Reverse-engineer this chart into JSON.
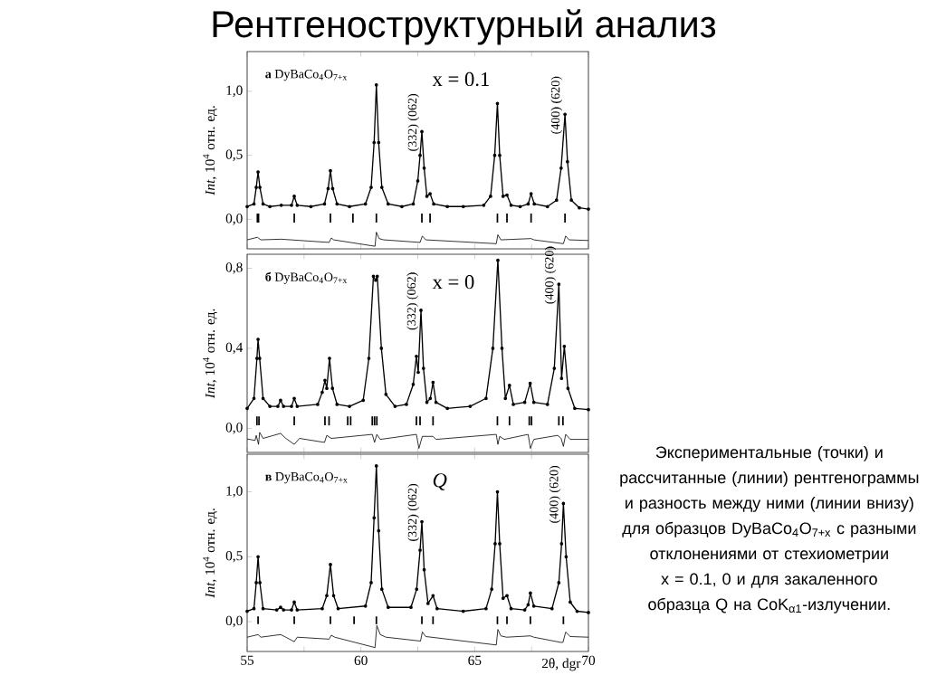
{
  "chart_data": [
    {
      "type": "line",
      "title": "Рентгеноструктурный анализ",
      "ylabel": "*Int*, 10$^{4}$ отн. ед.",
      "xlim": [
        55,
        70
      ],
      "ylim": [
        -0.23,
        1.31
      ],
      "tick_labels": "y",
      "xticks": [
        55,
        {
          "value": 57.5,
          "label": null
        },
        60,
        {
          "value": 62.5,
          "label": null
        },
        65,
        {
          "value": 67.5,
          "label": null
        },
        70
      ],
      "yticks": [
        {
          "value": 0,
          "label": "0,0"
        },
        {
          "value": 0.5,
          "label": "0,5"
        },
        {
          "value": 1.0,
          "label": "1,0"
        }
      ],
      "annotations": [
        "**а** DyBaCo$_{4}$O$_{7+x}$",
        "x = 0.1",
        {
          "text": "(332) (062)",
          "x": 62.68,
          "y": 0.685
        },
        {
          "text": "(400) (620)",
          "x": 68.97,
          "y": 0.82
        }
      ],
      "series": [
        {
          "marker": "circle",
          "color": "#000000",
          "x": [
            55.0,
            55.3,
            55.4,
            55.48,
            55.56,
            55.7,
            56.0,
            56.5,
            56.95,
            57.07,
            57.2,
            57.8,
            58.4,
            58.56,
            58.66,
            58.76,
            58.95,
            59.5,
            60.2,
            60.45,
            60.58,
            60.68,
            60.78,
            60.92,
            61.2,
            61.8,
            62.3,
            62.5,
            62.6,
            62.68,
            62.78,
            62.9,
            63.04,
            63.2,
            63.8,
            64.5,
            65.4,
            65.7,
            65.88,
            66.0,
            66.1,
            66.25,
            66.42,
            66.6,
            67.0,
            67.35,
            67.48,
            67.62,
            68.2,
            68.6,
            68.8,
            68.97,
            69.08,
            69.25,
            69.6,
            70.0
          ],
          "values": [
            0.1,
            0.12,
            0.25,
            0.37,
            0.25,
            0.12,
            0.1,
            0.11,
            0.11,
            0.18,
            0.11,
            0.1,
            0.12,
            0.24,
            0.38,
            0.24,
            0.12,
            0.1,
            0.12,
            0.25,
            0.6,
            1.05,
            0.6,
            0.25,
            0.12,
            0.1,
            0.12,
            0.3,
            0.5,
            0.685,
            0.4,
            0.18,
            0.2,
            0.12,
            0.1,
            0.1,
            0.11,
            0.18,
            0.5,
            0.905,
            0.5,
            0.18,
            0.19,
            0.11,
            0.1,
            0.12,
            0.2,
            0.12,
            0.1,
            0.15,
            0.4,
            0.82,
            0.45,
            0.15,
            0.09,
            0.08
          ]
        },
        {
          "type": "bar",
          "color": "#000000",
          "x": [
            55.45,
            55.5,
            57.07,
            58.66,
            59.65,
            60.68,
            62.68,
            63.04,
            66.0,
            66.42,
            67.48,
            68.97
          ],
          "base": [
            -0.025,
            -0.025,
            -0.025,
            -0.025,
            -0.025,
            -0.025,
            -0.025,
            -0.025,
            -0.025,
            -0.025,
            -0.025,
            -0.025
          ],
          "values": [
            0.07,
            0.07,
            0.07,
            0.07,
            0.07,
            0.07,
            0.07,
            0.07,
            0.07,
            0.07,
            0.07,
            0.07
          ]
        },
        {
          "marker": "none",
          "color": "#000000",
          "x": [
            55.0,
            55.45,
            55.6,
            56.5,
            58.6,
            58.7,
            58.8,
            60.62,
            60.68,
            60.8,
            61.0,
            62.6,
            62.7,
            62.85,
            65.95,
            66.02,
            66.15,
            67.48,
            67.6,
            68.9,
            69.0,
            69.15,
            70.0
          ],
          "values": [
            -0.16,
            -0.14,
            -0.16,
            -0.155,
            -0.18,
            -0.145,
            -0.16,
            -0.21,
            -0.1,
            -0.15,
            -0.16,
            -0.18,
            -0.13,
            -0.16,
            -0.19,
            -0.12,
            -0.16,
            -0.15,
            -0.16,
            -0.19,
            -0.13,
            -0.16,
            -0.165
          ]
        }
      ]
    },
    {
      "type": "line",
      "ylabel": "*Int*, 10$^{4}$ отн. ед.",
      "xlim": [
        55,
        70
      ],
      "ylim": [
        -0.12,
        0.87
      ],
      "tick_labels": "y",
      "xticks": [
        55,
        {
          "value": 57.5,
          "label": null
        },
        60,
        {
          "value": 62.5,
          "label": null
        },
        65,
        {
          "value": 67.5,
          "label": null
        },
        70
      ],
      "yticks": [
        {
          "value": 0,
          "label": "0,0"
        },
        {
          "value": 0.4,
          "label": "0,4"
        },
        {
          "value": 0.8,
          "label": "0,8"
        }
      ],
      "annotations": [
        "**б** DyBaCo$_{4}$O$_{7+x}$",
        "x = 0",
        "Экспериментальные (точки) и рассчитанные (линии) рентгенограммы и разность между ними (линии внизу) для образцов DyBaCo$_{4}$O$_{7+x}$ с разными отклонениями от стехиометрии x = 0.1, 0 и для закаленного образца Q на CoK$_{α1}$-излучении.",
        {
          "text": "(332) (062)",
          "x": 62.64,
          "y": 0.59
        },
        {
          "text": "(400) (620)",
          "x": 68.7,
          "y": 0.72
        }
      ],
      "series": [
        {
          "marker": "circle",
          "color": "#000000",
          "x": [
            55.0,
            55.3,
            55.43,
            55.48,
            55.55,
            55.7,
            56.0,
            56.35,
            56.47,
            56.6,
            56.95,
            57.07,
            57.2,
            58.1,
            58.3,
            58.42,
            58.5,
            58.62,
            58.75,
            58.95,
            59.5,
            60.1,
            60.35,
            60.55,
            60.65,
            60.72,
            60.9,
            61.1,
            61.5,
            62.0,
            62.3,
            62.44,
            62.52,
            62.64,
            62.75,
            62.9,
            63.05,
            63.17,
            63.3,
            63.8,
            64.8,
            65.5,
            65.8,
            66.02,
            66.2,
            66.35,
            66.53,
            66.7,
            67.2,
            67.44,
            67.6,
            68.2,
            68.5,
            68.7,
            68.82,
            68.94,
            69.1,
            69.4,
            70.0
          ],
          "values": [
            0.1,
            0.15,
            0.35,
            0.445,
            0.35,
            0.15,
            0.11,
            0.11,
            0.14,
            0.11,
            0.11,
            0.15,
            0.11,
            0.12,
            0.18,
            0.24,
            0.2,
            0.35,
            0.2,
            0.12,
            0.11,
            0.14,
            0.35,
            0.76,
            0.74,
            0.76,
            0.4,
            0.17,
            0.11,
            0.12,
            0.22,
            0.36,
            0.28,
            0.59,
            0.3,
            0.13,
            0.15,
            0.23,
            0.13,
            0.1,
            0.11,
            0.15,
            0.4,
            0.84,
            0.4,
            0.15,
            0.215,
            0.12,
            0.13,
            0.225,
            0.13,
            0.12,
            0.3,
            0.72,
            0.25,
            0.41,
            0.2,
            0.1,
            0.094
          ]
        },
        {
          "type": "bar",
          "color": "#000000",
          "x": [
            55.43,
            55.52,
            57.07,
            58.42,
            58.6,
            59.42,
            59.55,
            60.5,
            60.6,
            60.7,
            62.44,
            62.6,
            63.17,
            66.0,
            66.53,
            67.4,
            67.5,
            68.7,
            68.88
          ],
          "base": [
            0.015,
            0.015,
            0.015,
            0.015,
            0.015,
            0.015,
            0.015,
            0.015,
            0.015,
            0.015,
            0.015,
            0.015,
            0.015,
            0.015,
            0.015,
            0.015,
            0.015,
            0.015,
            0.015
          ],
          "values": [
            0.045,
            0.045,
            0.045,
            0.045,
            0.045,
            0.045,
            0.045,
            0.045,
            0.045,
            0.045,
            0.045,
            0.045,
            0.045,
            0.045,
            0.045,
            0.045,
            0.045,
            0.045,
            0.045
          ]
        },
        {
          "marker": "none",
          "color": "#000000",
          "x": [
            55.0,
            55.35,
            55.4,
            55.5,
            55.55,
            55.7,
            56.47,
            56.7,
            57.07,
            57.3,
            58.4,
            58.5,
            58.7,
            60.5,
            60.6,
            60.7,
            60.85,
            62.44,
            62.55,
            62.7,
            63.17,
            63.3,
            65.95,
            66.02,
            66.1,
            66.3,
            67.35,
            67.45,
            67.6,
            68.65,
            68.8,
            68.9,
            69.0,
            69.2,
            70.0
          ],
          "values": [
            -0.053,
            -0.06,
            -0.035,
            -0.08,
            -0.02,
            -0.05,
            -0.025,
            -0.05,
            -0.08,
            -0.05,
            -0.07,
            -0.035,
            -0.05,
            -0.03,
            -0.07,
            -0.03,
            -0.055,
            -0.03,
            -0.1,
            -0.04,
            -0.04,
            -0.055,
            -0.03,
            -0.08,
            -0.04,
            -0.055,
            -0.03,
            -0.1,
            -0.055,
            -0.035,
            -0.05,
            -0.09,
            -0.03,
            -0.055,
            -0.055
          ]
        }
      ]
    },
    {
      "type": "line",
      "xlabel": "2θ, dgr",
      "ylabel": "*Int*, 10$^{4}$ отн. ед.",
      "xlim": [
        55,
        70
      ],
      "ylim": [
        -0.23,
        1.29
      ],
      "xticks": [
        55,
        {
          "value": 57.5,
          "label": null
        },
        60,
        {
          "value": 62.5,
          "label": null
        },
        65,
        {
          "value": 67.5,
          "label": null
        },
        70
      ],
      "yticks": [
        {
          "value": 0,
          "label": "0,0"
        },
        {
          "value": 0.5,
          "label": "0,5"
        },
        {
          "value": 1.0,
          "label": "1,0"
        }
      ],
      "annotations": [
        "**в** DyBaCo$_{4}$O$_{7+x}$",
        "*Q*",
        {
          "text": "(332) (062)",
          "x": 62.68,
          "y": 0.77
        },
        {
          "text": "(400) (620)",
          "x": 68.9,
          "y": 0.91
        }
      ],
      "series": [
        {
          "marker": "circle",
          "color": "#000000",
          "x": [
            55.0,
            55.3,
            55.4,
            55.48,
            55.56,
            55.7,
            56.3,
            56.47,
            56.6,
            56.95,
            57.07,
            57.2,
            58.3,
            58.5,
            58.66,
            58.8,
            59.0,
            60.2,
            60.45,
            60.58,
            60.68,
            60.78,
            60.92,
            61.2,
            62.2,
            62.45,
            62.6,
            62.68,
            62.78,
            62.95,
            63.17,
            63.35,
            64.5,
            65.5,
            65.75,
            65.9,
            66.0,
            66.1,
            66.25,
            66.42,
            66.6,
            67.2,
            67.35,
            67.45,
            67.6,
            68.4,
            68.7,
            68.82,
            68.9,
            69.02,
            69.2,
            69.5,
            70.0
          ],
          "values": [
            0.08,
            0.1,
            0.3,
            0.5,
            0.3,
            0.1,
            0.09,
            0.11,
            0.09,
            0.09,
            0.15,
            0.09,
            0.1,
            0.2,
            0.44,
            0.2,
            0.1,
            0.12,
            0.3,
            0.8,
            1.2,
            0.7,
            0.25,
            0.11,
            0.11,
            0.25,
            0.55,
            0.77,
            0.4,
            0.14,
            0.2,
            0.1,
            0.08,
            0.1,
            0.25,
            0.6,
            1.0,
            0.6,
            0.18,
            0.2,
            0.1,
            0.09,
            0.13,
            0.22,
            0.12,
            0.1,
            0.3,
            0.6,
            0.91,
            0.5,
            0.15,
            0.08,
            0.07
          ]
        },
        {
          "type": "bar",
          "color": "#000000",
          "x": [
            55.48,
            57.07,
            58.66,
            59.7,
            60.68,
            62.68,
            63.17,
            66.0,
            66.42,
            67.45,
            68.9
          ],
          "base": [
            -0.02,
            -0.02,
            -0.02,
            -0.02,
            -0.02,
            -0.02,
            -0.02,
            -0.02,
            -0.02,
            -0.02,
            -0.02
          ],
          "values": [
            0.06,
            0.06,
            0.06,
            0.06,
            0.06,
            0.06,
            0.06,
            0.06,
            0.06,
            0.06,
            0.06
          ]
        },
        {
          "marker": "none",
          "color": "#000000",
          "x": [
            55.0,
            55.48,
            55.6,
            56.47,
            56.7,
            57.07,
            57.2,
            58.6,
            58.7,
            58.85,
            60.62,
            60.7,
            60.85,
            61.1,
            62.62,
            62.7,
            62.85,
            65.95,
            66.02,
            66.15,
            66.4,
            67.45,
            67.6,
            68.78,
            68.88,
            69.0,
            69.2,
            70.0
          ],
          "values": [
            -0.12,
            -0.1,
            -0.12,
            -0.1,
            -0.12,
            -0.155,
            -0.12,
            -0.135,
            -0.105,
            -0.12,
            -0.2,
            -0.03,
            -0.1,
            -0.12,
            -0.15,
            -0.08,
            -0.115,
            -0.18,
            -0.06,
            -0.11,
            -0.12,
            -0.11,
            -0.12,
            -0.16,
            -0.16,
            -0.08,
            -0.115,
            -0.12
          ]
        }
      ]
    }
  ]
}
